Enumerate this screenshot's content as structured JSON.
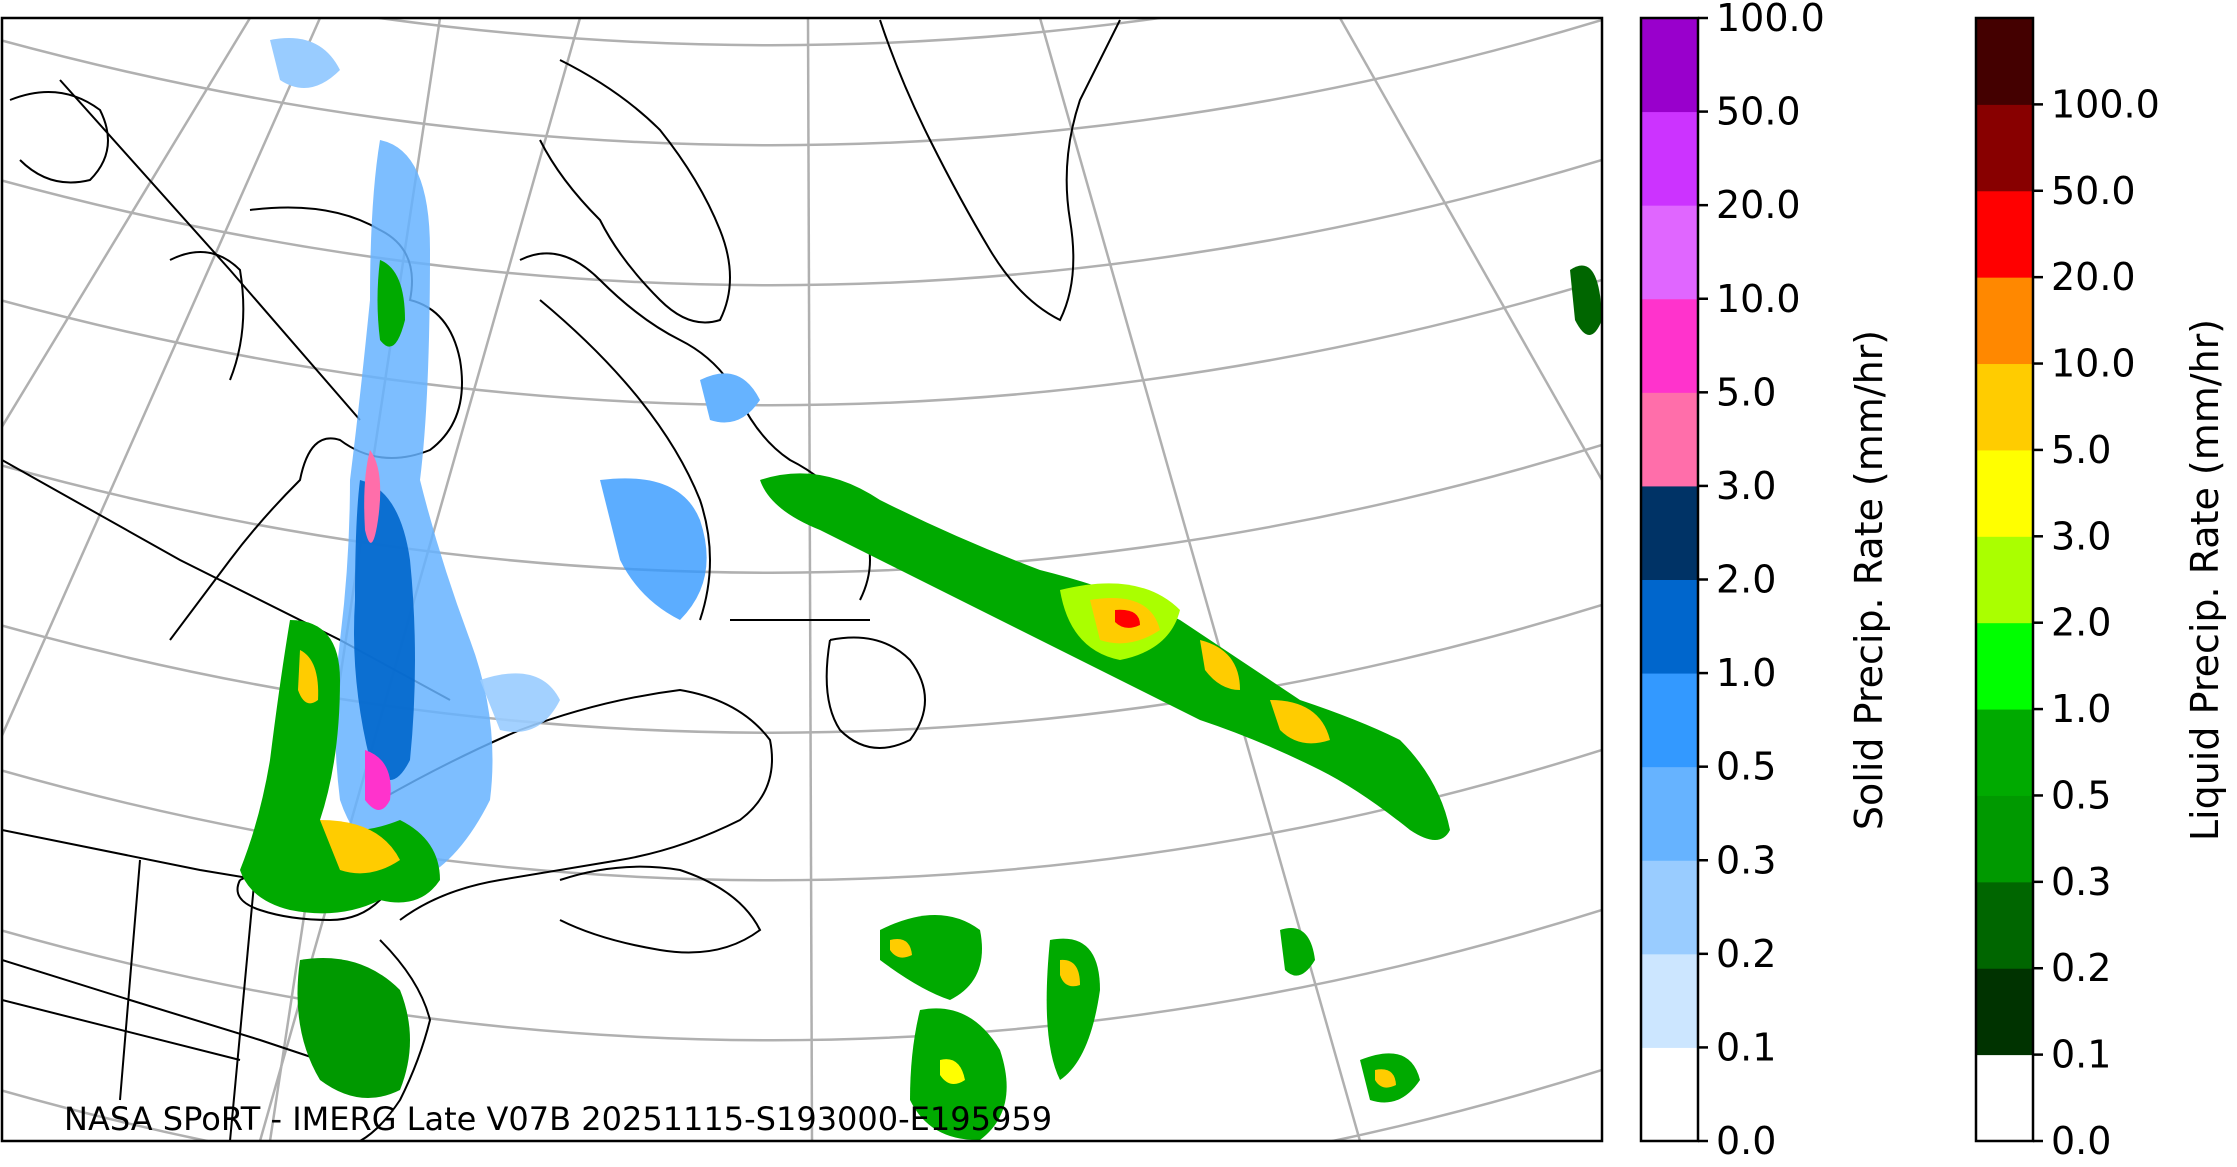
{
  "credit_text": "NASA SPoRT - IMERG Late V07B 20251115-S193000-E195959",
  "solid_colorbar": {
    "label": "Solid Precip. Rate (mm/hr)",
    "ticks": [
      "0.0",
      "0.1",
      "0.2",
      "0.3",
      "0.5",
      "1.0",
      "2.0",
      "3.0",
      "5.0",
      "10.0",
      "20.0",
      "50.0",
      "100.0"
    ],
    "colors": [
      "#ffffff",
      "#cce6ff",
      "#99ccff",
      "#66b3ff",
      "#3399ff",
      "#0066cc",
      "#003366",
      "#ff6eaa",
      "#ff33cc",
      "#e066ff",
      "#cc33ff",
      "#9900cc"
    ]
  },
  "liquid_colorbar": {
    "label": "Liquid Precip. Rate (mm/hr)",
    "ticks": [
      "0.0",
      "0.1",
      "0.2",
      "0.3",
      "0.5",
      "1.0",
      "2.0",
      "3.0",
      "5.0",
      "10.0",
      "20.0",
      "50.0",
      "100.0"
    ],
    "colors": [
      "#ffffff",
      "#003300",
      "#006600",
      "#009900",
      "#00aa00",
      "#00ff00",
      "#aaff00",
      "#ffff00",
      "#ffcc00",
      "#ff8800",
      "#ff0000",
      "#880000",
      "#440000"
    ]
  },
  "map": {
    "gridline_color": "#b0b0b0",
    "coastline_color": "#000000"
  }
}
